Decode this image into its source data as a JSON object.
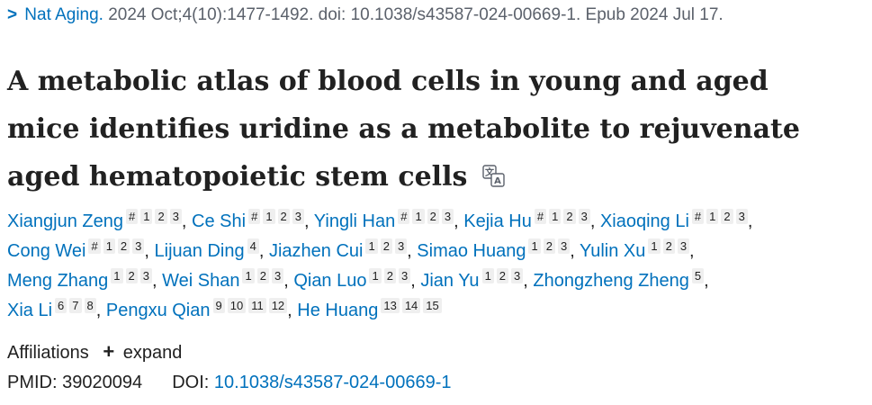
{
  "citation": {
    "chevron": ">",
    "journal": "Nat Aging.",
    "details": "2024 Oct;4(10):1477-1492. doi: 10.1038/s43587-024-00669-1. Epub 2024 Jul 17."
  },
  "article": {
    "title_lines": [
      "A metabolic atlas of blood cells in young and aged",
      "mice identifies uridine as a metabolite to rejuvenate",
      "aged hematopoietic stem cells"
    ],
    "translate_icon": "translate-icon"
  },
  "authors": [
    {
      "name": "Xiangjun Zeng",
      "sups": [
        "#",
        "1",
        "2",
        "3"
      ]
    },
    {
      "name": "Ce Shi",
      "sups": [
        "#",
        "1",
        "2",
        "3"
      ]
    },
    {
      "name": "Yingli Han",
      "sups": [
        "#",
        "1",
        "2",
        "3"
      ]
    },
    {
      "name": "Kejia Hu",
      "sups": [
        "#",
        "1",
        "2",
        "3"
      ]
    },
    {
      "name": "Xiaoqing Li",
      "sups": [
        "#",
        "1",
        "2",
        "3"
      ]
    },
    {
      "name": "Cong Wei",
      "sups": [
        "#",
        "1",
        "2",
        "3"
      ]
    },
    {
      "name": "Lijuan Ding",
      "sups": [
        "4"
      ]
    },
    {
      "name": "Jiazhen Cui",
      "sups": [
        "1",
        "2",
        "3"
      ]
    },
    {
      "name": "Simao Huang",
      "sups": [
        "1",
        "2",
        "3"
      ]
    },
    {
      "name": "Yulin Xu",
      "sups": [
        "1",
        "2",
        "3"
      ]
    },
    {
      "name": "Meng Zhang",
      "sups": [
        "1",
        "2",
        "3"
      ]
    },
    {
      "name": "Wei Shan",
      "sups": [
        "1",
        "2",
        "3"
      ]
    },
    {
      "name": "Qian Luo",
      "sups": [
        "1",
        "2",
        "3"
      ]
    },
    {
      "name": "Jian Yu",
      "sups": [
        "1",
        "2",
        "3"
      ]
    },
    {
      "name": "Zhongzheng Zheng",
      "sups": [
        "5"
      ]
    },
    {
      "name": "Xia Li",
      "sups": [
        "6",
        "7",
        "8"
      ]
    },
    {
      "name": "Pengxu Qian",
      "sups": [
        "9",
        "10",
        "11",
        "12"
      ]
    },
    {
      "name": "He Huang",
      "sups": [
        "13",
        "14",
        "15"
      ]
    }
  ],
  "author_line_breaks_after": [
    4,
    9,
    14
  ],
  "affiliations": {
    "label": "Affiliations",
    "plus": "+",
    "toggle": "expand"
  },
  "identifiers": {
    "pmid_label": "PMID:",
    "pmid": "39020094",
    "doi_label": "DOI:",
    "doi": "10.1038/s43587-024-00669-1"
  },
  "colors": {
    "link": "#0071bc",
    "text": "#212121",
    "muted": "#5b616b",
    "sup_bg": "#efefef"
  }
}
